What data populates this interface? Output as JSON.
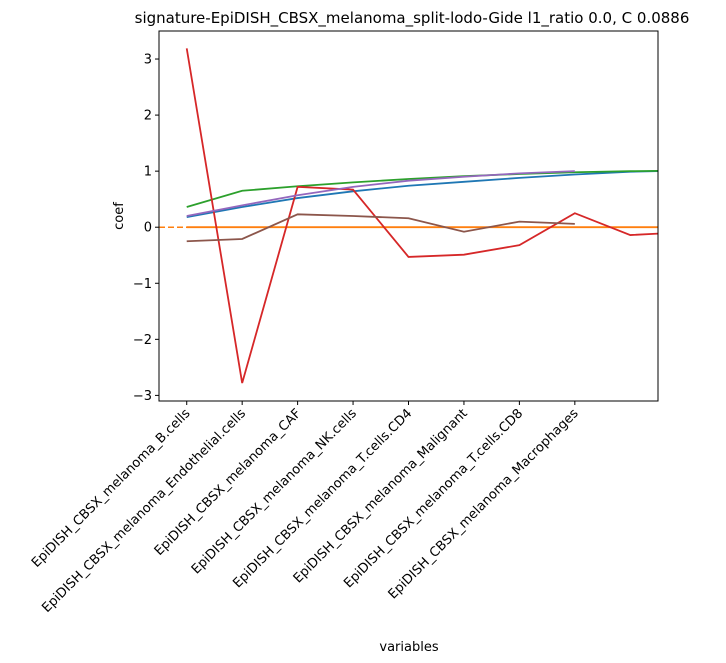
{
  "chart_data": {
    "type": "line",
    "title": "signature-EpiDISH_CBSX_melanoma_split-lodo-Gide l1_ratio 0.0, C 0.0886",
    "xlabel": "variables",
    "ylabel": "coef",
    "xlim": [
      -0.5,
      8.5
    ],
    "ylim": [
      -3.1,
      3.5
    ],
    "categories": [
      "EpiDISH_CBSX_melanoma_B.cells",
      "EpiDISH_CBSX_melanoma_Endothelial.cells",
      "EpiDISH_CBSX_melanoma_CAF",
      "EpiDISH_CBSX_melanoma_NK.cells",
      "EpiDISH_CBSX_melanoma_T.cells.CD4",
      "EpiDISH_CBSX_melanoma_Malignant",
      "EpiDISH_CBSX_melanoma_T.cells.CD8",
      "EpiDISH_CBSX_melanoma_Macrophages"
    ],
    "yticks": [
      -3,
      -2,
      -1,
      0,
      1,
      2,
      3
    ],
    "grid": false,
    "legend": "none",
    "reference_line": {
      "y": 0,
      "color": "#ff7f0e",
      "style": "dashed"
    },
    "series": [
      {
        "color": "#1f77b4",
        "x": [
          0,
          1,
          2,
          3,
          4,
          5,
          6,
          7,
          8,
          9
        ],
        "y": [
          0.18,
          0.36,
          0.52,
          0.64,
          0.74,
          0.81,
          0.88,
          0.94,
          0.99,
          1.01
        ]
      },
      {
        "color": "#ff7f0e",
        "x": [
          0,
          1,
          2,
          3,
          4,
          5,
          6,
          7,
          8,
          9
        ],
        "y": [
          0,
          0,
          0,
          0,
          0,
          0,
          0,
          0,
          0,
          0
        ]
      },
      {
        "color": "#2ca02c",
        "x": [
          0,
          1,
          2,
          3,
          4,
          5,
          6,
          7,
          8,
          9
        ],
        "y": [
          0.36,
          0.65,
          0.73,
          0.8,
          0.86,
          0.91,
          0.95,
          0.98,
          1.0,
          1.01
        ]
      },
      {
        "color": "#d62728",
        "x": [
          0,
          1,
          2,
          3,
          4,
          5,
          6,
          7,
          8,
          9
        ],
        "y": [
          3.19,
          -2.78,
          0.72,
          0.67,
          -0.53,
          -0.49,
          -0.32,
          0.25,
          -0.14,
          -0.09
        ]
      },
      {
        "color": "#9467bd",
        "x": [
          0,
          1,
          2,
          3,
          4,
          5,
          6,
          7
        ],
        "y": [
          0.2,
          0.39,
          0.57,
          0.72,
          0.83,
          0.9,
          0.96,
          1.0
        ]
      },
      {
        "color": "#8c564b",
        "x": [
          0,
          1,
          2,
          3,
          4,
          5,
          6,
          7
        ],
        "y": [
          -0.25,
          -0.21,
          0.23,
          0.2,
          0.16,
          -0.08,
          0.1,
          0.06
        ]
      }
    ]
  }
}
